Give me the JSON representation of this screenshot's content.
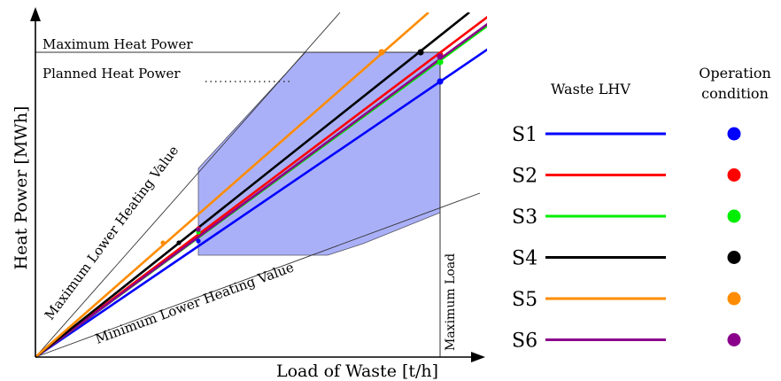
{
  "labels": {
    "y_axis": "Heat Power [MWh]",
    "x_axis": "Load of Waste [t/h]",
    "max_heat": "Maximum Heat Power",
    "planned_heat": "Planned Heat Power",
    "max_lhv": "Maximum Lower Heating Value",
    "min_lhv": "Minimum Lower Heating Value",
    "max_load": "Maximum Load"
  },
  "legend": {
    "col_lhv": "Waste LHV",
    "col_op_line1": "Operation",
    "col_op_line2": "condition",
    "items": [
      {
        "name": "S1",
        "color": "#0000ff"
      },
      {
        "name": "S2",
        "color": "#ff0000"
      },
      {
        "name": "S3",
        "color": "#00ee00"
      },
      {
        "name": "S4",
        "color": "#000000"
      },
      {
        "name": "S5",
        "color": "#ff8c00"
      },
      {
        "name": "S6",
        "color": "#8b008b"
      }
    ]
  },
  "colors": {
    "region_fill": "#aab0f8",
    "region_stroke": "#555566"
  }
}
